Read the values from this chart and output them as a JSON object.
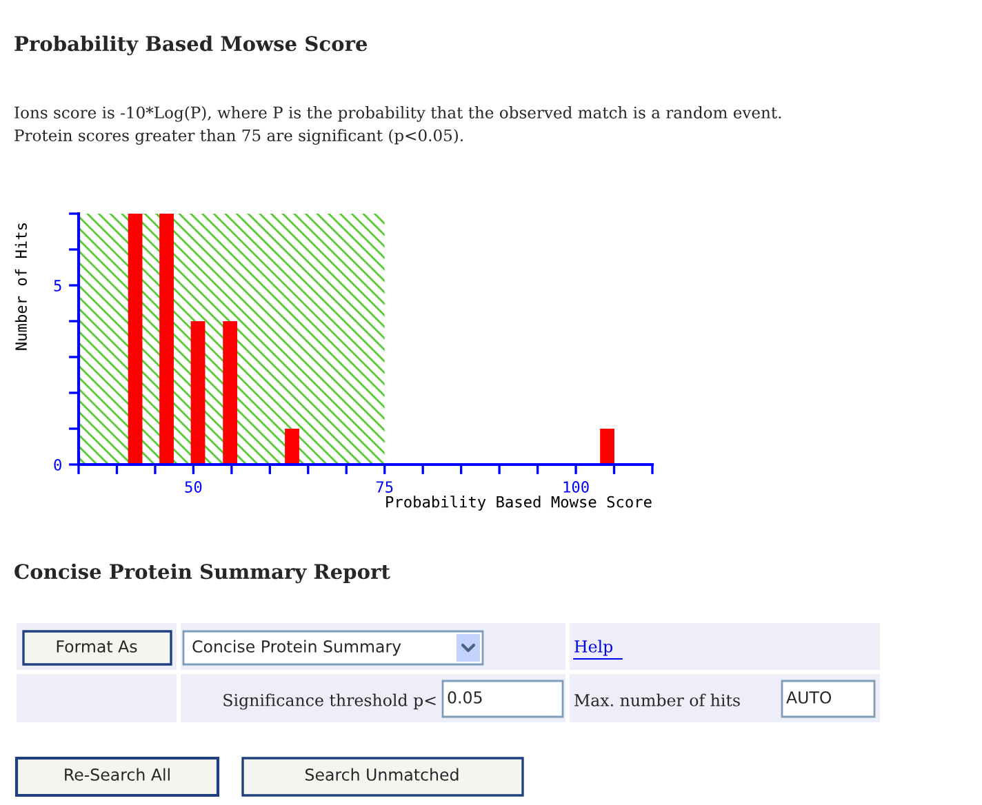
{
  "chart_data": {
    "type": "bar",
    "title": "Probability Based Mowse Score",
    "subtitle": "Ions score is -10*Log(P), where P is the probability that the observed match is a random event.\nProtein scores greater than 75 are significant (p<0.05).",
    "xlabel": "Probability Based Mowse Score",
    "ylabel": "Number of Hits",
    "x": [
      42.4,
      46.5,
      50.6,
      54.8,
      62.9,
      104.1
    ],
    "values": [
      7,
      7,
      4,
      4,
      1,
      1
    ],
    "color": "#ff0000",
    "xlim": [
      35,
      110
    ],
    "xticks": [
      {
        "value": 35,
        "label": null
      },
      {
        "value": 40,
        "label": null
      },
      {
        "value": 45,
        "label": null
      },
      50,
      {
        "value": 55,
        "label": null
      },
      {
        "value": 60,
        "label": null
      },
      {
        "value": 65,
        "label": null
      },
      {
        "value": 70,
        "label": null
      },
      75,
      {
        "value": 80,
        "label": null
      },
      {
        "value": 85,
        "label": null
      },
      {
        "value": 90,
        "label": null
      },
      {
        "value": 95,
        "label": null
      },
      100,
      {
        "value": 105,
        "label": null
      },
      {
        "value": 110,
        "label": null
      }
    ],
    "ylim": [
      0,
      7
    ],
    "yticks": [
      0,
      {
        "value": 1,
        "label": null
      },
      {
        "value": 2,
        "label": null
      },
      {
        "value": 3,
        "label": null
      },
      {
        "value": 4,
        "label": null
      },
      5,
      {
        "value": 6,
        "label": null
      },
      {
        "value": 7,
        "label": null
      }
    ],
    "bands": [
      {
        "axis": "x",
        "from": 35,
        "to": 75,
        "color": "#55cc33"
      }
    ],
    "grid": false,
    "annotations": [
      "Concise Protein Summary Report",
      "Format As",
      "Concise Protein Summary",
      "Help",
      "Significance threshold p<",
      "0.05",
      "Max. number of hits",
      "AUTO",
      "Re-Search All",
      "Search Unmatched"
    ]
  }
}
